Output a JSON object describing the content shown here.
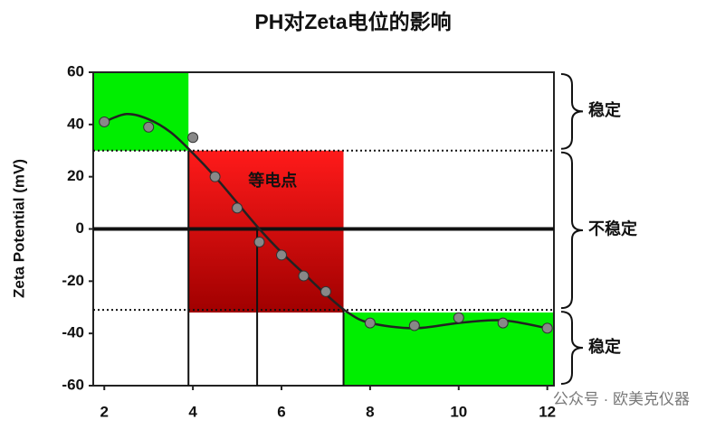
{
  "chart_data": {
    "type": "scatter",
    "title": "PH对Zeta电位的影响",
    "y_label": "Zeta Potential (mV)",
    "xlim": [
      1.75,
      12.15
    ],
    "ylim": [
      -60,
      60
    ],
    "xticks": [
      2,
      4,
      6,
      8,
      10,
      12
    ],
    "yticks": [
      -60,
      -40,
      -20,
      0,
      20,
      40,
      60
    ],
    "regions": [
      {
        "x": [
          1.75,
          3.9
        ],
        "y": [
          30,
          60
        ],
        "color": "#00ee00"
      },
      {
        "x": [
          3.9,
          7.4
        ],
        "y": [
          -32,
          30
        ],
        "color": "#e00000"
      },
      {
        "x": [
          7.4,
          12.15
        ],
        "y": [
          -60,
          -32
        ],
        "color": "#00ee00"
      }
    ],
    "hlines": [
      {
        "y": 30,
        "style": "dotted"
      },
      {
        "y": 0,
        "style": "solid"
      },
      {
        "y": -31,
        "style": "dotted"
      }
    ],
    "vlines": [
      {
        "x": 3.9,
        "top": 30
      },
      {
        "x": 5.45,
        "top": 0
      },
      {
        "x": 7.4,
        "top": -31
      }
    ],
    "series": [
      {
        "kind": "points",
        "color": "#888888",
        "x": [
          2,
          3,
          4,
          4.5,
          5,
          5.5,
          6,
          6.5,
          7,
          8,
          9,
          10,
          11,
          12
        ],
        "values": [
          41,
          39,
          35,
          20,
          8,
          -5,
          -10,
          -18,
          -24,
          -36,
          -37,
          -34,
          -36,
          -38
        ]
      },
      {
        "kind": "curve",
        "color": "#222222",
        "x": [
          2,
          2.5,
          3,
          3.5,
          4,
          4.5,
          5,
          5.5,
          6,
          6.5,
          7,
          7.5,
          8,
          9,
          10,
          11,
          12
        ],
        "values": [
          41,
          44,
          42,
          37,
          29,
          20,
          10,
          0,
          -9,
          -17,
          -25,
          -32,
          -36,
          -38,
          -36,
          -35,
          -38
        ]
      }
    ],
    "annotations": [
      {
        "text": "等电点",
        "x": 5.8,
        "y": 18
      },
      {
        "text": "稳定",
        "y": [
          60,
          30
        ]
      },
      {
        "text": "不稳定",
        "y": [
          30,
          -31
        ]
      },
      {
        "text": "稳定",
        "y": [
          -31,
          -60
        ]
      }
    ],
    "watermark": "公众号 · 欧美克仪器"
  }
}
